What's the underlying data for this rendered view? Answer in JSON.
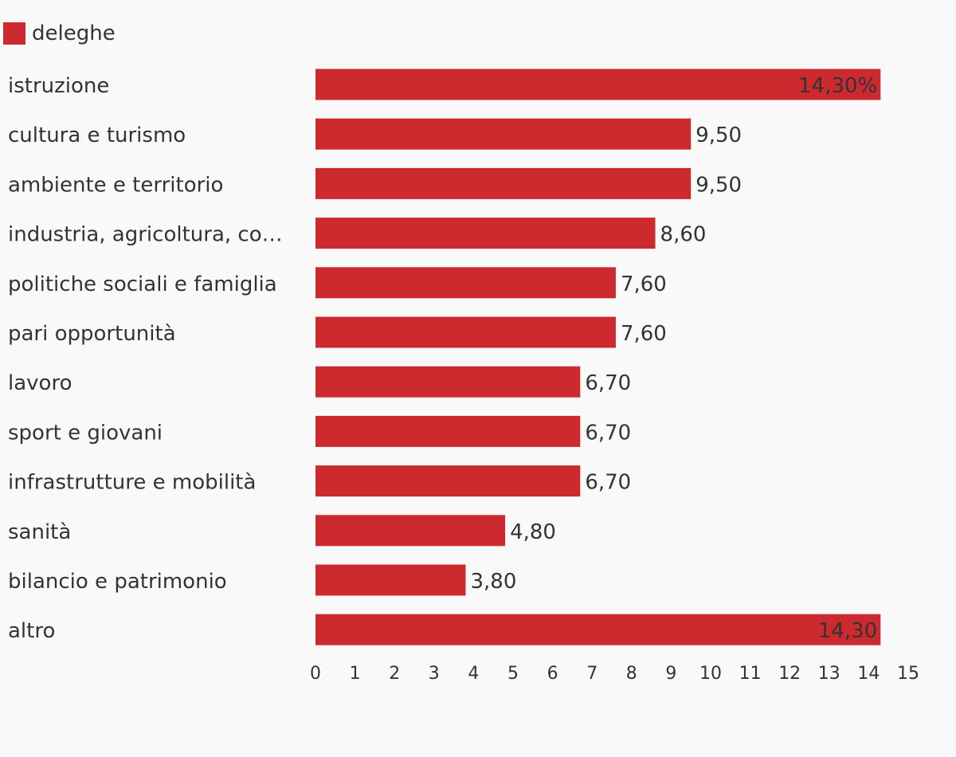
{
  "chart_data": {
    "type": "bar",
    "orientation": "horizontal",
    "color": "#cd2a30",
    "series": [
      {
        "name": "deleghe"
      }
    ],
    "categories": [
      "istruzione",
      "cultura e turismo",
      "ambiente e territorio",
      "industria, agricoltura, co…",
      "politiche sociali e famiglia",
      "pari opportunità",
      "lavoro",
      "sport e giovani",
      "infrastrutture e mobilità",
      "sanità",
      "bilancio e patrimonio",
      "altro"
    ],
    "values": [
      14.3,
      9.5,
      9.5,
      8.6,
      7.6,
      7.6,
      6.7,
      6.7,
      6.7,
      4.8,
      3.8,
      14.3
    ],
    "data_labels": [
      "14,30%",
      "9,50",
      "9,50",
      "8,60",
      "7,60",
      "7,60",
      "6,70",
      "6,70",
      "6,70",
      "4,80",
      "3,80",
      "14,30"
    ],
    "xlim": [
      0,
      15
    ],
    "xticks": [
      "0",
      "1",
      "2",
      "3",
      "4",
      "5",
      "6",
      "7",
      "8",
      "9",
      "10",
      "11",
      "12",
      "13",
      "14",
      "15"
    ],
    "grid": false,
    "legend_position": "top-left"
  }
}
